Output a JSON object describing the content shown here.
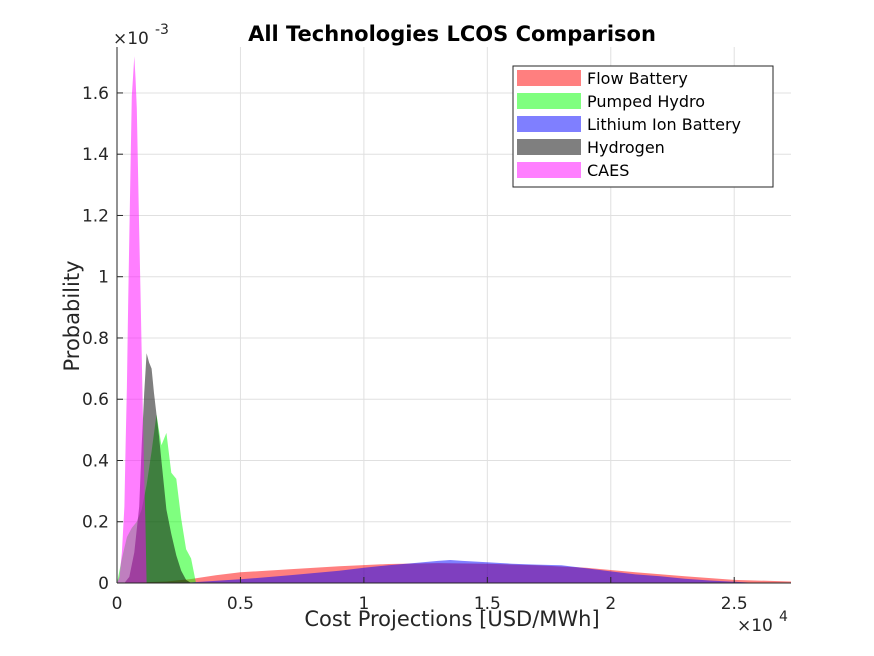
{
  "chart_data": {
    "type": "area",
    "title": "All Technologies LCOS Comparison",
    "xlabel": "Cost Projections [USD/MWh]",
    "ylabel": "Probability",
    "x_multiplier": "×10",
    "x_exponent": "4",
    "y_multiplier": "×10",
    "y_exponent": "-3",
    "xlim": [
      0,
      27300
    ],
    "ylim": [
      0,
      0.00175
    ],
    "grid": true,
    "legend_position": "top-right",
    "x_ticks": [
      0,
      5000,
      10000,
      15000,
      20000,
      25000
    ],
    "x_tick_labels": [
      "0",
      "0.5",
      "1",
      "1.5",
      "2",
      "2.5"
    ],
    "y_ticks": [
      0,
      0.0002,
      0.0004,
      0.0006,
      0.0008,
      0.001,
      0.0012,
      0.0014,
      0.0016
    ],
    "y_tick_labels": [
      "0",
      "0.2",
      "0.4",
      "0.6",
      "0.8",
      "1",
      "1.2",
      "1.4",
      "1.6"
    ],
    "series": [
      {
        "name": "Flow Battery",
        "color": "#ff0000",
        "x": [
          0,
          2000,
          3000,
          4000,
          5000,
          7000,
          9000,
          11000,
          13000,
          15000,
          17000,
          19000,
          21000,
          23000,
          25000,
          27300
        ],
        "y": [
          0,
          5e-06,
          1.3e-05,
          2.5e-05,
          3.5e-05,
          4.5e-05,
          5.5e-05,
          6.2e-05,
          6.5e-05,
          6.3e-05,
          5.8e-05,
          5e-05,
          3.5e-05,
          2.2e-05,
          1e-05,
          5e-06
        ]
      },
      {
        "name": "Pumped Hydro",
        "color": "#00ff00",
        "x": [
          0,
          200,
          400,
          600,
          800,
          1000,
          1200,
          1400,
          1600,
          1800,
          2000,
          2200,
          2400,
          2600,
          2800,
          3000,
          3200
        ],
        "y": [
          0,
          8e-05,
          0.00015,
          0.00018,
          0.0002,
          0.00024,
          0.00032,
          0.00043,
          0.00055,
          0.00045,
          0.00049,
          0.00036,
          0.00034,
          0.00021,
          0.00011,
          8e-05,
          0
        ]
      },
      {
        "name": "Lithium Ion Battery",
        "color": "#0000ff",
        "x": [
          0,
          3000,
          5000,
          7000,
          9000,
          10000,
          11000,
          12000,
          13000,
          13500,
          14000,
          15000,
          16000,
          17000,
          18000,
          19000,
          20000,
          21000,
          22000,
          23000,
          24000,
          25000,
          26000
        ],
        "y": [
          0,
          2e-06,
          1.2e-05,
          2.5e-05,
          4e-05,
          5e-05,
          5.8e-05,
          6.5e-05,
          7.2e-05,
          7.5e-05,
          7.2e-05,
          6.8e-05,
          6.3e-05,
          6e-05,
          5.8e-05,
          4.8e-05,
          3.8e-05,
          2.8e-05,
          2.2e-05,
          1.4e-05,
          8e-06,
          4e-06,
          0
        ]
      },
      {
        "name": "Hydrogen",
        "color": "#000000",
        "x": [
          300,
          500,
          700,
          900,
          1000,
          1100,
          1200,
          1300,
          1400,
          1500,
          1600,
          1700,
          1800,
          1900,
          2000,
          2200,
          2400,
          2600,
          2800,
          3000
        ],
        "y": [
          0,
          2e-05,
          0.0001,
          0.00025,
          0.00045,
          0.00062,
          0.00075,
          0.00072,
          0.0007,
          0.00062,
          0.00055,
          0.00048,
          0.0004,
          0.00032,
          0.00024,
          0.00016,
          9e-05,
          4e-05,
          1e-05,
          0
        ]
      },
      {
        "name": "CAES",
        "color": "#ff00ff",
        "x": [
          0,
          100,
          200,
          300,
          350,
          400,
          450,
          500,
          550,
          600,
          650,
          700,
          750,
          800,
          850,
          900,
          950,
          1000,
          1050,
          1100,
          1150,
          1200
        ],
        "y": [
          0,
          2e-05,
          0.0001,
          0.00025,
          0.00045,
          0.00064,
          0.0009,
          0.00113,
          0.00137,
          0.00159,
          0.00165,
          0.00172,
          0.00165,
          0.00155,
          0.00135,
          0.00115,
          0.00095,
          0.00075,
          0.00055,
          0.00035,
          0.0002,
          0
        ]
      }
    ]
  }
}
